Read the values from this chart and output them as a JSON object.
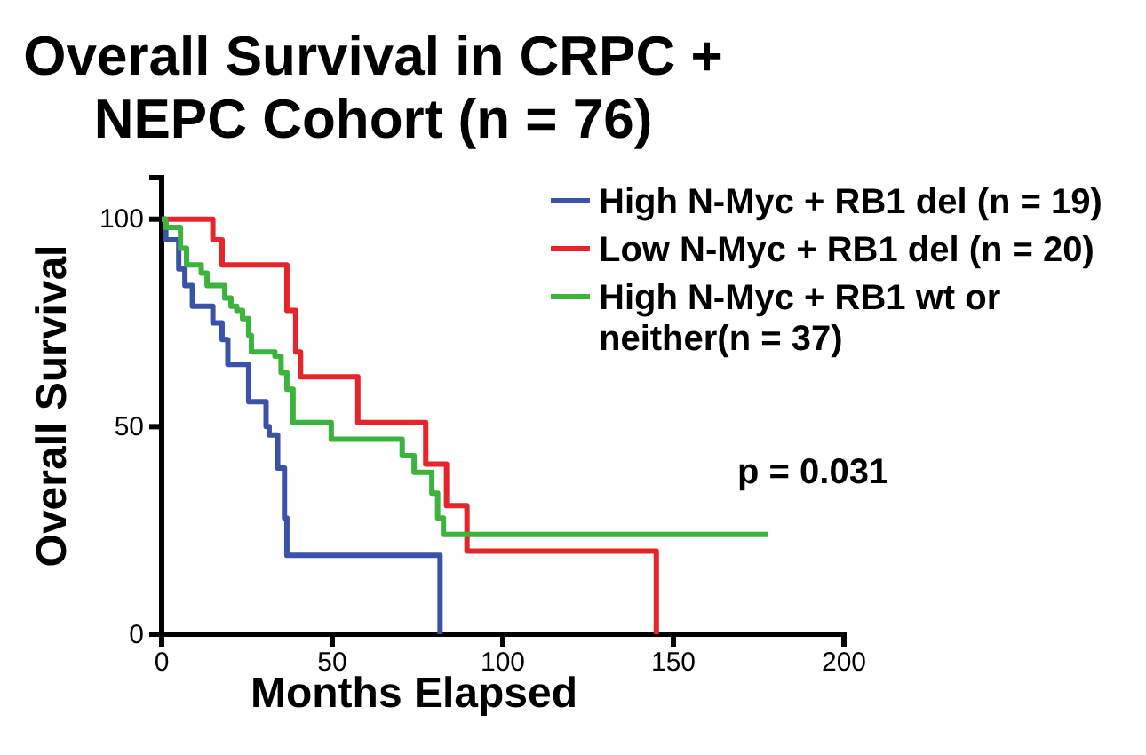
{
  "chart_data": {
    "type": "step",
    "title": "Overall Survival in CRPC + NEPC Cohort (n = 76)",
    "xlabel": "Months Elapsed",
    "ylabel": "Overall Survival",
    "xlim": [
      0,
      200
    ],
    "xticks": [
      0,
      50,
      100,
      150,
      200
    ],
    "ylim": [
      0,
      110
    ],
    "yticks": [
      0,
      50,
      100
    ],
    "grid": false,
    "legend": "top right",
    "annotations": [
      "p = 0.031"
    ],
    "series": [
      {
        "name": "High N-Myc + RB1 del (n = 19)",
        "color": "#3a52a8",
        "x": [
          0,
          1.2,
          5,
          6.8,
          9,
          15,
          17.7,
          19.4,
          25.5,
          30.6,
          31.5,
          34,
          36,
          36.7,
          81.6,
          81.6
        ],
        "values": [
          100,
          95,
          88,
          84,
          79,
          75,
          71,
          65,
          56,
          50,
          48,
          40,
          28,
          19,
          19,
          0
        ]
      },
      {
        "name": "Low N-Myc + RB1 del (n = 20)",
        "color": "#e8242b",
        "x": [
          0,
          15,
          17.7,
          36.7,
          39.3,
          40.7,
          57.5,
          77.4,
          83.5,
          89.5,
          145,
          145
        ],
        "values": [
          100,
          95,
          89,
          78,
          68,
          62,
          51,
          41,
          31,
          20,
          20,
          0
        ]
      },
      {
        "name": "High N-Myc + RB1 wt or neither(n = 37)",
        "color": "#3cb33c",
        "x": [
          0,
          1.2,
          5.5,
          7.3,
          11.6,
          13.3,
          18.5,
          20.3,
          22,
          23.7,
          25.5,
          26.3,
          33.2,
          35,
          36.7,
          38.5,
          49.7,
          70.5,
          74,
          79.2,
          80.9,
          82.6,
          177.7
        ],
        "values": [
          100,
          98,
          93,
          89,
          87,
          84,
          81,
          79,
          78,
          76,
          72,
          68,
          67,
          63,
          59,
          51,
          47,
          43,
          39,
          34,
          28,
          24,
          24
        ]
      }
    ]
  }
}
